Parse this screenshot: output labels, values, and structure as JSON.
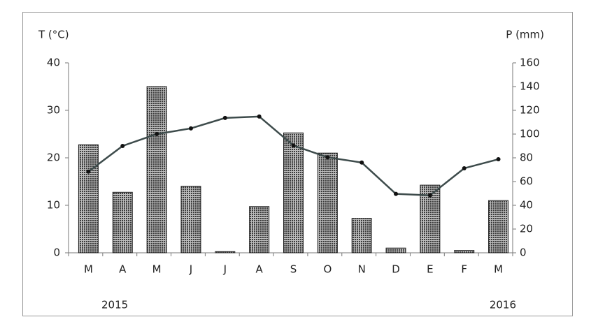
{
  "chart_data": {
    "type": "bar-line",
    "y_label": "T (°C)",
    "y2_label": "P (mm)",
    "annotations": [
      "2015",
      "2016"
    ],
    "categories": [
      "M",
      "A",
      "M",
      "J",
      "J",
      "A",
      "S",
      "O",
      "N",
      "D",
      "E",
      "F",
      "M"
    ],
    "series": [
      {
        "name": "P",
        "type": "bar",
        "axis": "y2",
        "color": "#3c3c3c",
        "values": [
          91,
          51,
          140,
          56,
          1,
          39,
          101,
          84,
          29,
          4,
          57,
          2,
          44
        ]
      },
      {
        "name": "T",
        "type": "line",
        "color": "#3d4b4b",
        "values": [
          17.1,
          22.5,
          25,
          26.2,
          28.4,
          28.7,
          22.6,
          20.1,
          19,
          12.4,
          12.1,
          17.8,
          19.7
        ]
      }
    ],
    "ylim": [
      0,
      40
    ],
    "yticks": [
      0,
      10,
      20,
      30,
      40
    ],
    "y2lim": [
      0,
      160
    ],
    "y2ticks": [
      0,
      20,
      40,
      60,
      80,
      100,
      120,
      140,
      160
    ]
  }
}
